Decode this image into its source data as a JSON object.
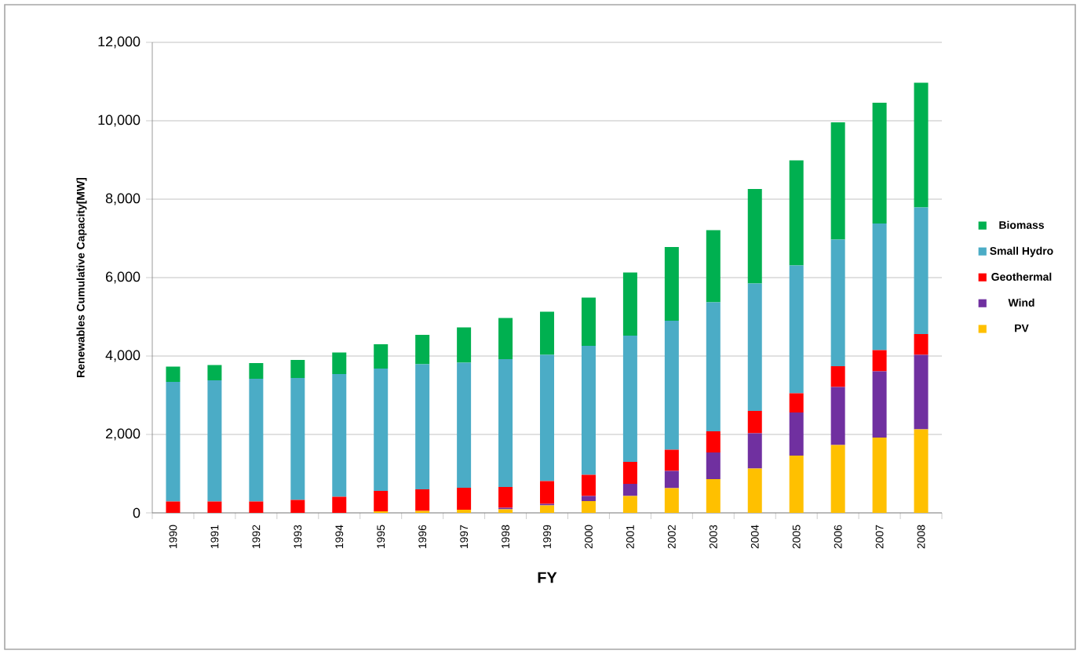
{
  "chart_data": {
    "type": "bar",
    "stacked": true,
    "xlabel": "FY",
    "ylabel": "Renewables Cumulative Capacity[MW]",
    "categories": [
      "1990",
      "1991",
      "1992",
      "1993",
      "1994",
      "1995",
      "1996",
      "1997",
      "1998",
      "1999",
      "2000",
      "2001",
      "2002",
      "2003",
      "2004",
      "2005",
      "2006",
      "2007",
      "2008"
    ],
    "series": [
      {
        "name": "PV",
        "color": "#ffc000",
        "values": [
          0,
          0,
          0,
          0,
          null,
          40,
          50,
          80,
          90,
          190,
          300,
          430,
          630,
          860,
          1130,
          1460,
          1730,
          1920,
          2130
        ]
      },
      {
        "name": "Wind",
        "color": "#7030a0",
        "values": [
          0,
          0,
          0,
          0,
          0,
          0,
          0,
          null,
          40,
          40,
          130,
          310,
          440,
          680,
          900,
          1100,
          1480,
          1690,
          1900
        ]
      },
      {
        "name": "Geothermal",
        "color": "#ff0000",
        "values": [
          290,
          290,
          290,
          330,
          410,
          520,
          550,
          560,
          530,
          580,
          540,
          560,
          540,
          540,
          570,
          490,
          530,
          540,
          530
        ]
      },
      {
        "name": "Small Hydro",
        "color": "#4bacc6",
        "values": [
          3050,
          3090,
          3130,
          3110,
          3130,
          3120,
          3190,
          3190,
          3260,
          3220,
          3290,
          3220,
          3290,
          3290,
          3250,
          3260,
          3230,
          3230,
          3230
        ]
      },
      {
        "name": "Biomass",
        "color": "#00b050",
        "values": [
          390,
          390,
          400,
          460,
          550,
          620,
          750,
          900,
          1050,
          1100,
          1230,
          1610,
          1880,
          1840,
          2410,
          2680,
          2990,
          3080,
          3180
        ]
      }
    ],
    "ylim": [
      0,
      12000
    ],
    "yticks": [
      0,
      {
        "value": 2000,
        "label": "2,000"
      },
      {
        "value": 4000,
        "label": "4,000"
      },
      {
        "value": 6000,
        "label": "6,000"
      },
      {
        "value": 8000,
        "label": "8,000"
      },
      {
        "value": 10000,
        "label": "10,000"
      },
      {
        "value": 12000,
        "label": "12,000"
      }
    ],
    "grid": "y",
    "legend": "right"
  }
}
